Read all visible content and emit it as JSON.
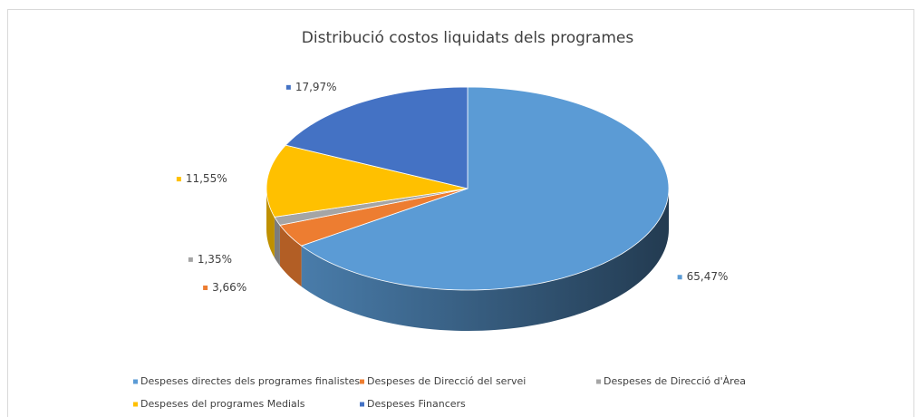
{
  "chart_data": {
    "type": "pie3d",
    "title": "Distribució costos liquidats dels programes",
    "categories": [
      "Despeses directes dels programes finalistes",
      "Despeses de Direcció del servei",
      "Despeses de Direcció d'Àrea",
      "Despeses del programes Medials",
      "Despeses Financers"
    ],
    "values": [
      65.47,
      3.66,
      1.35,
      11.55,
      17.97
    ],
    "value_labels": [
      "65,47%",
      "3,66%",
      "1,35%",
      "11,55%",
      "17,97%"
    ],
    "colors": [
      "#5b9bd5",
      "#ed7d31",
      "#a5a5a5",
      "#ffc000",
      "#4472c4"
    ],
    "legend": "bottom"
  }
}
